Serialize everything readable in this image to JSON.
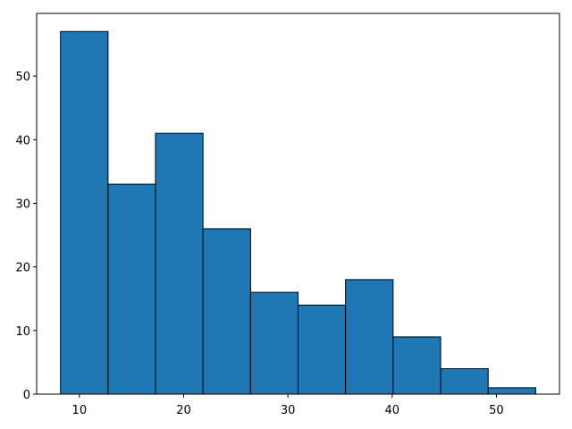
{
  "chart_data": {
    "type": "histogram",
    "bins": [
      8.19,
      12.75,
      17.3,
      21.86,
      26.42,
      30.98,
      35.53,
      40.09,
      44.65,
      49.21,
      53.77
    ],
    "values": [
      57,
      33,
      41,
      26,
      16,
      14,
      18,
      9,
      4,
      1
    ],
    "color": "#1f77b4",
    "edgecolor": "#000000",
    "xlim": [
      5.9,
      56.05
    ],
    "ylim": [
      0,
      59.85
    ],
    "xticks": [
      10,
      20,
      30,
      40,
      50
    ],
    "yticks": [
      0,
      10,
      20,
      30,
      40,
      50
    ]
  }
}
